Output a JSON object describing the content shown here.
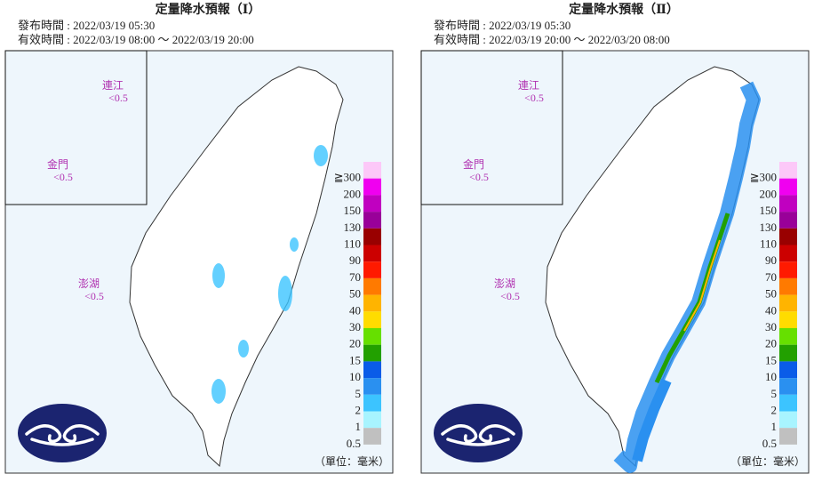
{
  "panels": [
    {
      "title": "定量降水預報（Ⅰ）",
      "issued": "發布時間 : 2022/03/19 05:30",
      "valid": "有效時間 : 2022/03/19 08:00 ～ 2022/03/19 20:00",
      "regions": [
        {
          "name": "連江",
          "value": "<0.5"
        },
        {
          "name": "金門",
          "value": "<0.5"
        },
        {
          "name": "澎湖",
          "value": "<0.5"
        }
      ]
    },
    {
      "title": "定量降水預報（Ⅱ）",
      "issued": "發布時間 : 2022/03/19 05:30",
      "valid": "有效時間 : 2022/03/19 20:00 ～ 2022/03/20 08:00",
      "regions": [
        {
          "name": "連江",
          "value": "<0.5"
        },
        {
          "name": "金門",
          "value": "<0.5"
        },
        {
          "name": "澎湖",
          "value": "<0.5"
        }
      ]
    }
  ],
  "legend": [
    {
      "label": "≧300",
      "color": "#fcc8f8"
    },
    {
      "label": "200",
      "color": "#f000f0"
    },
    {
      "label": "150",
      "color": "#c000c0"
    },
    {
      "label": "130",
      "color": "#990099"
    },
    {
      "label": "110",
      "color": "#990000"
    },
    {
      "label": "90",
      "color": "#cc0000"
    },
    {
      "label": "70",
      "color": "#ff1a00"
    },
    {
      "label": "50",
      "color": "#ff7a00"
    },
    {
      "label": "40",
      "color": "#ffb400"
    },
    {
      "label": "30",
      "color": "#ffdc00"
    },
    {
      "label": "20",
      "color": "#66e000"
    },
    {
      "label": "15",
      "color": "#22a000"
    },
    {
      "label": "10",
      "color": "#0a5ce8"
    },
    {
      "label": "5",
      "color": "#2a90f0"
    },
    {
      "label": "2",
      "color": "#3cc4ff"
    },
    {
      "label": "1",
      "color": "#a8f4ff"
    },
    {
      "label": "0.5",
      "color": "#c0c0c0"
    }
  ],
  "unit": "（單位：毫米）"
}
